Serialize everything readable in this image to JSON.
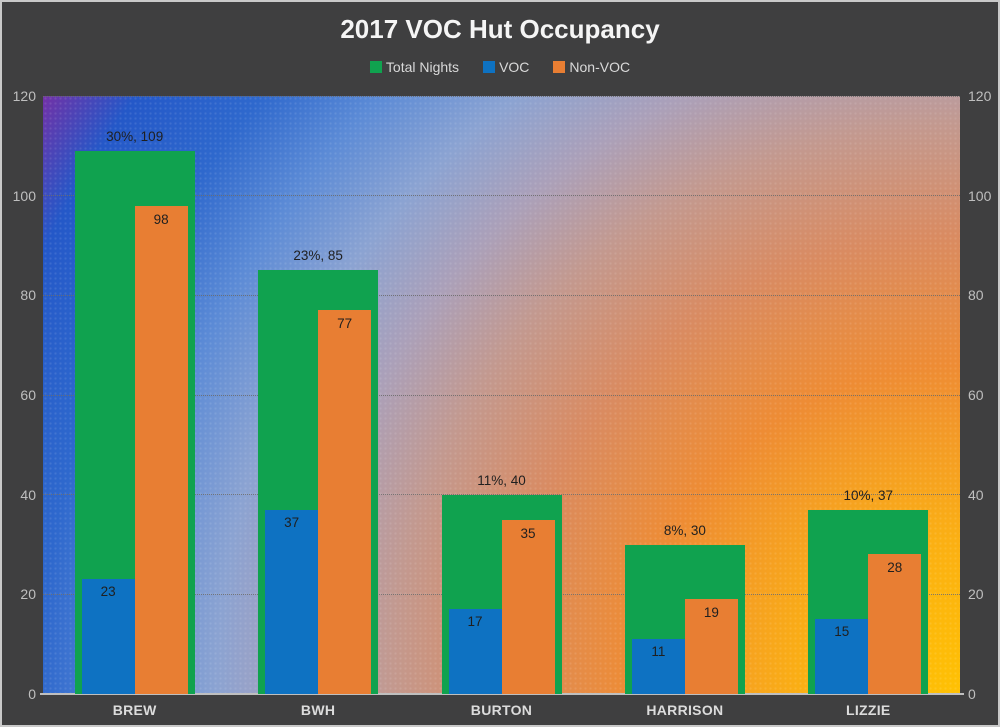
{
  "title": "2017 VOC Hut Occupancy",
  "legend": {
    "items": [
      {
        "label": "Total Nights",
        "color": "#10A24F"
      },
      {
        "label": "VOC",
        "color": "#0E72C2"
      },
      {
        "label": "Non-VOC",
        "color": "#E87E33"
      }
    ]
  },
  "axes": {
    "yticks": [
      0,
      20,
      40,
      60,
      80,
      100,
      120
    ],
    "tick_color": "#BFBFBF",
    "category_color": "#DCDCDC"
  },
  "colors": {
    "chart_background": "#3F3F40",
    "outer_border": "#C9C9C9",
    "total_nights": "#10A24F",
    "voc": "#0E72C2",
    "non_voc": "#E87E33",
    "data_label": "#1F1F1F",
    "plot_gradient_corners": {
      "top_left": "#7434A8",
      "left_bottom": "#2161CB",
      "center": "#C89A90",
      "top_right": "#A8A2C0",
      "bottom_right": "#FFC000"
    }
  },
  "chart_data": {
    "type": "bar",
    "title": "2017 VOC Hut Occupancy",
    "categories": [
      "BREW",
      "BWH",
      "BURTON",
      "HARRISON",
      "LIZZIE"
    ],
    "series": [
      {
        "name": "Total Nights",
        "color": "#10A24F",
        "values": [
          109,
          85,
          40,
          30,
          37
        ],
        "labels": [
          "30%, 109",
          "23%, 85",
          "11%, 40",
          "8%, 30",
          "10%, 37"
        ],
        "label_position": "above"
      },
      {
        "name": "VOC",
        "color": "#0E72C2",
        "values": [
          23,
          37,
          17,
          11,
          15
        ],
        "labels": [
          "23",
          "37",
          "17",
          "11",
          "15"
        ],
        "label_position": "inside-top"
      },
      {
        "name": "Non-VOC",
        "color": "#E87E33",
        "values": [
          98,
          77,
          35,
          19,
          28
        ],
        "labels": [
          "98",
          "77",
          "35",
          "19",
          "28"
        ],
        "label_position": "inside-top"
      }
    ],
    "ylim": [
      0,
      120
    ],
    "yticks": [
      0,
      20,
      40,
      60,
      80,
      100,
      120
    ],
    "grid": "horizontal-dotted",
    "legend_position": "top",
    "y_axis_sides": [
      "left",
      "right"
    ]
  }
}
